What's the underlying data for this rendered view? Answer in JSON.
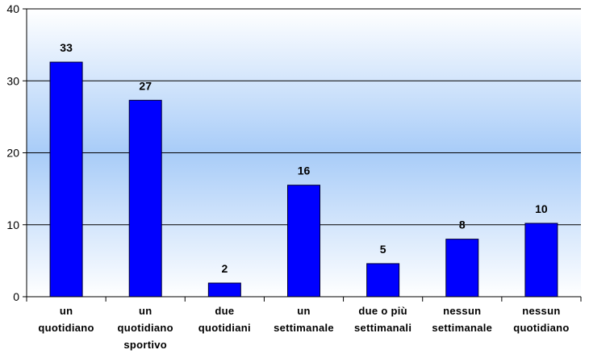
{
  "chart_data": {
    "type": "bar",
    "title": "",
    "xlabel": "",
    "ylabel": "",
    "ylim": [
      0,
      40
    ],
    "yticks": [
      "0",
      "10",
      "20",
      "30",
      "40"
    ],
    "grid": true,
    "categories": [
      [
        "un",
        "quotidiano"
      ],
      [
        "un",
        "quotidiano",
        "sportivo"
      ],
      [
        "due",
        "quotidiani"
      ],
      [
        "un",
        "settimanale"
      ],
      [
        "due o più",
        "settimanali"
      ],
      [
        "nessun",
        "settimanale"
      ],
      [
        "nessun",
        "quotidiano"
      ]
    ],
    "values": [
      32.6,
      27.3,
      1.9,
      15.5,
      4.6,
      8.0,
      10.2
    ],
    "data_labels": [
      "33",
      "27",
      "2",
      "16",
      "5",
      "8",
      "10"
    ],
    "colors": {
      "bar": "#0000ff",
      "bar_edge": "#000033",
      "background_mid": "#a8ccf8",
      "background_edge": "#ffffff"
    }
  }
}
